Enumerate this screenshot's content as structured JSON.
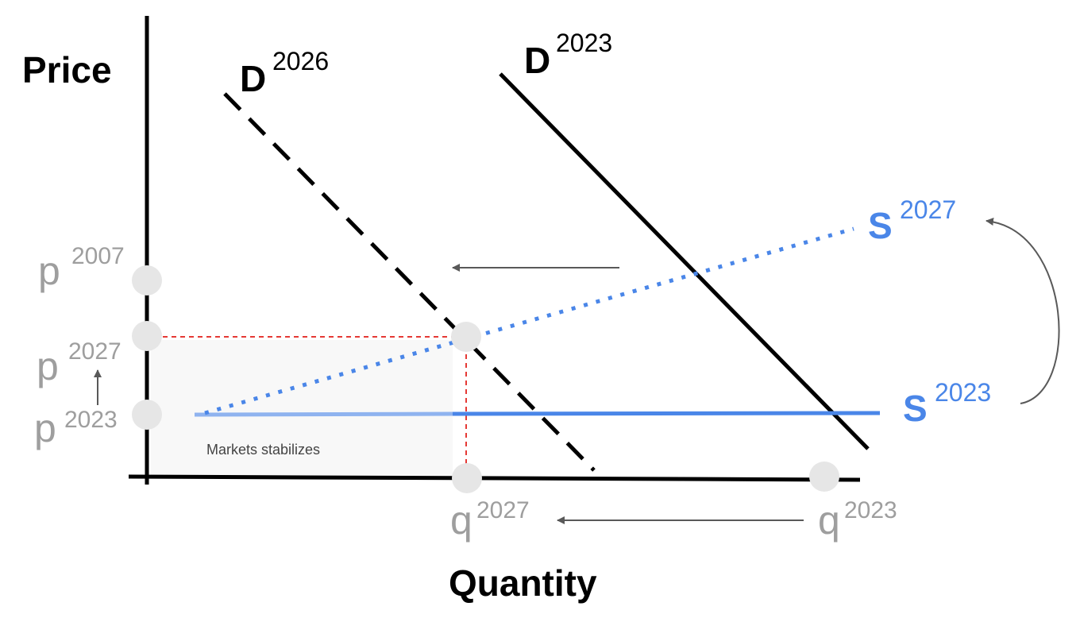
{
  "axes": {
    "y_label": "Price",
    "x_label": "Quantity"
  },
  "curves": [
    {
      "label": "D",
      "superscript": "2026"
    },
    {
      "label": "D",
      "superscript": "2023"
    },
    {
      "label": "S",
      "superscript": "2027"
    },
    {
      "label": "S",
      "superscript": "2023"
    }
  ],
  "price_points": [
    {
      "label": "p",
      "superscript": "2007"
    },
    {
      "label": "p",
      "superscript": "2027"
    },
    {
      "label": "p",
      "superscript": "2023"
    }
  ],
  "quantity_points": [
    {
      "label": "q",
      "superscript": "2027"
    },
    {
      "label": "q",
      "superscript": "2023"
    }
  ],
  "annotation": "Markets stabilizes"
}
